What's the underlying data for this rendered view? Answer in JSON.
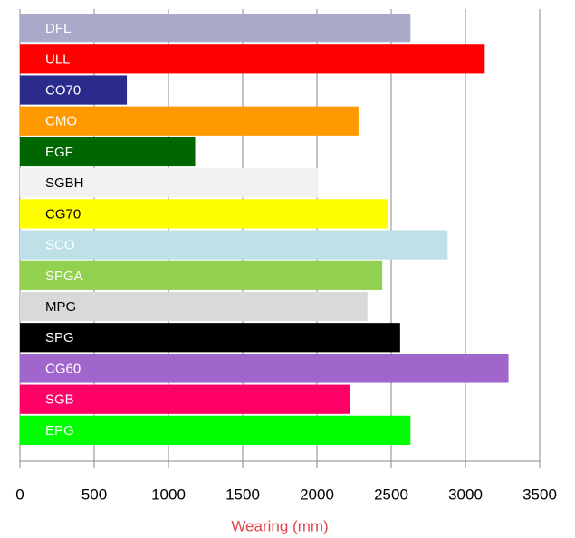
{
  "chart_data": {
    "type": "barh",
    "xlabel": "Wearing (mm)",
    "categories": [
      "DFL",
      "ULL",
      "CO70",
      "CMO",
      "EGF",
      "SGBH",
      "CG70",
      "SCO",
      "SPGA",
      "MPG",
      "SPG",
      "CG60",
      "SGB",
      "EPG"
    ],
    "values": [
      2630,
      3130,
      720,
      2280,
      1180,
      2010,
      2480,
      2880,
      2440,
      2340,
      2560,
      3290,
      2220,
      2630
    ],
    "colors": [
      "#a9a9c9",
      "#ff0000",
      "#2b2b8c",
      "#ff9900",
      "#006600",
      "#f2f2f2",
      "#ffff00",
      "#bde1e6",
      "#92d050",
      "#d9d9d9",
      "#000000",
      "#a066cc",
      "#ff0066",
      "#00ff00"
    ],
    "label_colors": [
      "#ffffff",
      "#ffffff",
      "#ffffff",
      "#ffffff",
      "#ffffff",
      "#000000",
      "#000000",
      "#ffffff",
      "#ffffff",
      "#000000",
      "#ffffff",
      "#ffffff",
      "#ffffff",
      "#ffffff"
    ],
    "xlim": [
      0,
      3500
    ],
    "xticks": [
      0,
      500,
      1000,
      1500,
      2000,
      2500,
      3000,
      3500
    ],
    "grid": true
  }
}
